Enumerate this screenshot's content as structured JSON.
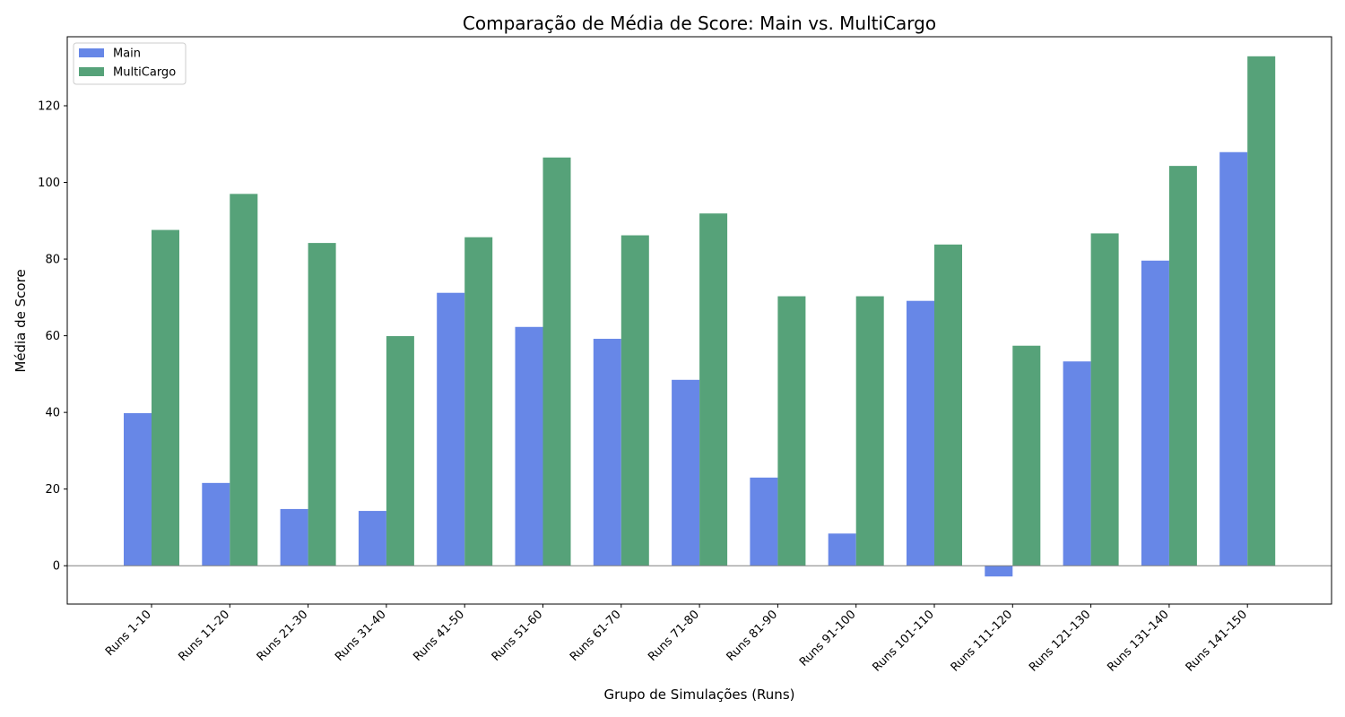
{
  "chart_data": {
    "type": "bar",
    "title": "Comparação de Média de Score: Main vs. MultiCargo",
    "xlabel": "Grupo de Simulações (Runs)",
    "ylabel": "Média de Score",
    "ylim": [
      -10,
      138
    ],
    "yticks": [
      0,
      20,
      40,
      60,
      80,
      100,
      120
    ],
    "legend_position": "upper-left",
    "grid": false,
    "categories": [
      "Runs 1-10",
      "Runs 11-20",
      "Runs 21-30",
      "Runs 31-40",
      "Runs 41-50",
      "Runs 51-60",
      "Runs 61-70",
      "Runs 71-80",
      "Runs 81-90",
      "Runs 91-100",
      "Runs 101-110",
      "Runs 111-120",
      "Runs 121-130",
      "Runs 131-140",
      "Runs 141-150"
    ],
    "series": [
      {
        "name": "Main",
        "color": "#6787e7",
        "values": [
          39.8,
          21.6,
          14.8,
          14.3,
          71.2,
          62.3,
          59.2,
          48.5,
          23.0,
          8.4,
          69.1,
          -2.8,
          53.3,
          79.6,
          107.9
        ]
      },
      {
        "name": "MultiCargo",
        "color": "#56a279",
        "values": [
          87.6,
          97.0,
          84.2,
          59.9,
          85.7,
          106.5,
          86.2,
          91.9,
          70.3,
          70.3,
          83.8,
          57.4,
          86.7,
          104.3,
          132.9
        ]
      }
    ]
  }
}
